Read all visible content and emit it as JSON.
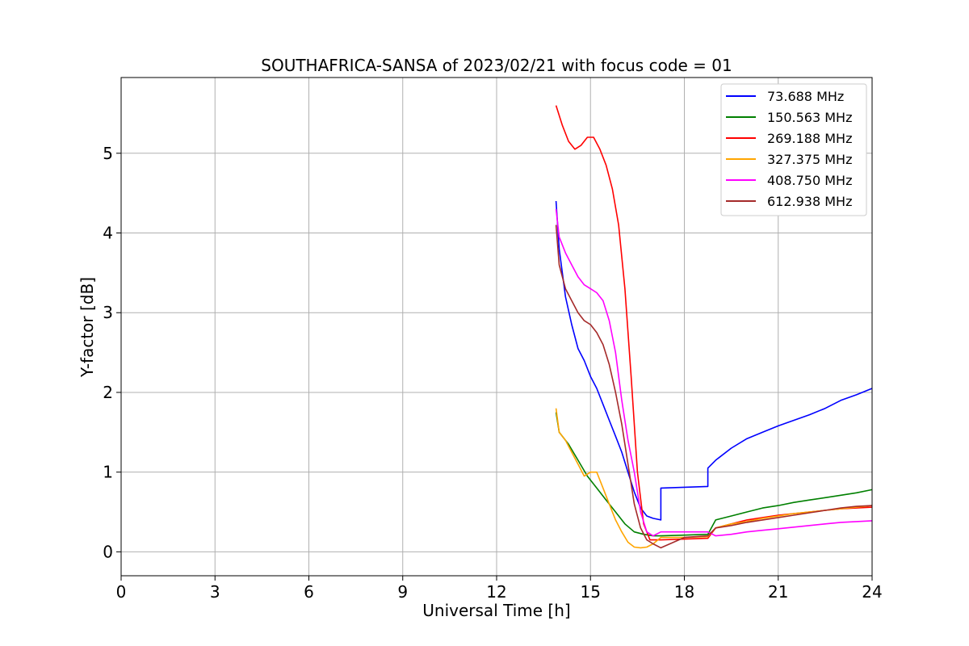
{
  "chart_data": {
    "type": "line",
    "title": "SOUTHAFRICA-SANSA of 2023/02/21 with focus code = 01",
    "xlabel": "Universal Time [h]",
    "ylabel": "Y-factor [dB]",
    "xlim": [
      0,
      24
    ],
    "ylim": [
      -0.3,
      5.95
    ],
    "xticks": [
      0,
      3,
      6,
      9,
      12,
      15,
      18,
      21,
      24
    ],
    "yticks": [
      0,
      1,
      2,
      3,
      4,
      5
    ],
    "grid": true,
    "legend_position": "top-right",
    "series": [
      {
        "name": " 73.688 MHz",
        "color": "#0000ff",
        "x": [
          13.9,
          14.0,
          14.2,
          14.4,
          14.6,
          14.8,
          15.0,
          15.2,
          15.4,
          15.6,
          15.8,
          16.0,
          16.2,
          16.4,
          16.6,
          16.8,
          17.0,
          17.25,
          17.25,
          18.0,
          18.75,
          18.75,
          19.0,
          19.5,
          20.0,
          20.5,
          21.0,
          21.5,
          22.0,
          22.5,
          23.0,
          23.5,
          24.0
        ],
        "y": [
          4.4,
          3.8,
          3.2,
          2.85,
          2.55,
          2.4,
          2.2,
          2.05,
          1.85,
          1.65,
          1.45,
          1.25,
          1.0,
          0.75,
          0.55,
          0.45,
          0.42,
          0.4,
          0.8,
          0.81,
          0.82,
          1.05,
          1.15,
          1.3,
          1.42,
          1.5,
          1.58,
          1.65,
          1.72,
          1.8,
          1.9,
          1.97,
          2.05
        ]
      },
      {
        "name": "150.563 MHz",
        "color": "#008000",
        "x": [
          13.9,
          14.0,
          14.3,
          14.6,
          14.9,
          15.2,
          15.5,
          15.8,
          16.1,
          16.4,
          16.7,
          17.0,
          17.25,
          18.0,
          18.75,
          19.0,
          19.5,
          20.0,
          20.5,
          21.0,
          21.5,
          22.0,
          22.5,
          23.0,
          23.5,
          24.0
        ],
        "y": [
          1.75,
          1.5,
          1.35,
          1.15,
          0.95,
          0.8,
          0.65,
          0.5,
          0.35,
          0.25,
          0.22,
          0.2,
          0.2,
          0.21,
          0.22,
          0.4,
          0.45,
          0.5,
          0.55,
          0.58,
          0.62,
          0.65,
          0.68,
          0.71,
          0.74,
          0.78
        ]
      },
      {
        "name": "269.188 MHz",
        "color": "#ff0000",
        "x": [
          13.9,
          14.1,
          14.3,
          14.5,
          14.7,
          14.9,
          15.1,
          15.3,
          15.5,
          15.7,
          15.9,
          16.1,
          16.3,
          16.5,
          16.7,
          16.9,
          17.25,
          18.0,
          18.75,
          19.0,
          19.5,
          20.0,
          20.5,
          21.0,
          21.5,
          22.0,
          22.5,
          23.0,
          23.5,
          24.0
        ],
        "y": [
          5.6,
          5.35,
          5.15,
          5.05,
          5.1,
          5.2,
          5.2,
          5.05,
          4.85,
          4.55,
          4.1,
          3.3,
          2.2,
          1.0,
          0.35,
          0.15,
          0.15,
          0.16,
          0.17,
          0.3,
          0.35,
          0.4,
          0.43,
          0.46,
          0.48,
          0.5,
          0.52,
          0.54,
          0.55,
          0.56
        ]
      },
      {
        "name": "327.375 MHz",
        "color": "#ffa500",
        "x": [
          13.9,
          14.0,
          14.2,
          14.4,
          14.6,
          14.8,
          15.0,
          15.2,
          15.4,
          15.6,
          15.8,
          16.0,
          16.2,
          16.4,
          16.6,
          16.8,
          17.0,
          17.25,
          18.0,
          18.75,
          19.0,
          19.5,
          20.0,
          20.5,
          21.0,
          21.5,
          22.0,
          22.5,
          23.0,
          23.5,
          24.0
        ],
        "y": [
          1.8,
          1.5,
          1.4,
          1.25,
          1.1,
          0.95,
          1.0,
          1.0,
          0.8,
          0.6,
          0.4,
          0.25,
          0.12,
          0.06,
          0.05,
          0.06,
          0.1,
          0.18,
          0.18,
          0.19,
          0.3,
          0.35,
          0.38,
          0.42,
          0.45,
          0.48,
          0.5,
          0.52,
          0.54,
          0.56,
          0.58
        ]
      },
      {
        "name": "408.750 MHz",
        "color": "#ff00ff",
        "x": [
          13.9,
          14.0,
          14.2,
          14.4,
          14.6,
          14.8,
          15.0,
          15.2,
          15.4,
          15.6,
          15.8,
          16.0,
          16.2,
          16.4,
          16.6,
          16.8,
          17.0,
          17.25,
          18.0,
          18.75,
          19.0,
          19.5,
          20.0,
          20.5,
          21.0,
          21.5,
          22.0,
          22.5,
          23.0,
          23.5,
          24.0
        ],
        "y": [
          4.3,
          3.95,
          3.75,
          3.6,
          3.45,
          3.35,
          3.3,
          3.25,
          3.15,
          2.9,
          2.5,
          1.9,
          1.4,
          1.0,
          0.5,
          0.25,
          0.2,
          0.25,
          0.25,
          0.25,
          0.2,
          0.22,
          0.25,
          0.27,
          0.29,
          0.31,
          0.33,
          0.35,
          0.37,
          0.38,
          0.39
        ]
      },
      {
        "name": "612.938 MHz",
        "color": "#a52a2a",
        "x": [
          13.9,
          14.0,
          14.2,
          14.4,
          14.6,
          14.8,
          15.0,
          15.2,
          15.4,
          15.6,
          15.8,
          16.0,
          16.2,
          16.4,
          16.6,
          16.8,
          17.0,
          17.25,
          18.0,
          18.75,
          19.0,
          19.5,
          20.0,
          20.5,
          21.0,
          21.5,
          22.0,
          22.5,
          23.0,
          23.5,
          24.0
        ],
        "y": [
          4.1,
          3.6,
          3.3,
          3.15,
          3.0,
          2.9,
          2.85,
          2.75,
          2.6,
          2.35,
          2.0,
          1.6,
          1.1,
          0.6,
          0.3,
          0.15,
          0.1,
          0.05,
          0.18,
          0.2,
          0.3,
          0.33,
          0.37,
          0.4,
          0.43,
          0.46,
          0.49,
          0.52,
          0.55,
          0.57,
          0.58
        ]
      }
    ]
  }
}
